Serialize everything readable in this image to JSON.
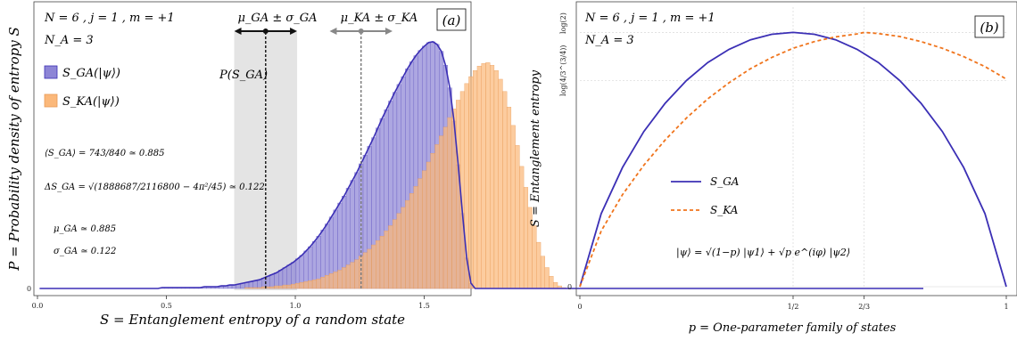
{
  "chart_data": [
    {
      "type": "histogram",
      "panel_label": "(a)",
      "header": {
        "line1": "N = 6 , j = 1 , m = +1",
        "line2": "N_A = 3"
      },
      "xlabel": "S = Entanglement entropy of a random state",
      "ylabel": "P = Probability density of entropy S",
      "xlim": [
        0.0,
        1.64
      ],
      "x_ticks": [
        "0.0",
        "0.5",
        "1.0",
        "1.5"
      ],
      "y_ticks": [
        "0"
      ],
      "legend": [
        "S_GA(|ψ⟩)",
        "S_KA(|ψ⟩)"
      ],
      "colors": {
        "GA": "#8d85d6",
        "GA_line": "#3b2fb5",
        "KA": "#fbb87a"
      },
      "curve_label": "P(S_GA)",
      "annotations": {
        "mean_GA_eq": "⟨S_GA⟩ = 743/840 ≃ 0.885",
        "delta_GA_eq": "ΔS_GA = √(1888687/2116800 − 4π²/45) ≃ 0.122",
        "mu_GA": "μ_GA ≃ 0.885",
        "sigma_GA": "σ_GA ≃ 0.122",
        "mu_sigma_GA": "μ_GA ± σ_GA",
        "mu_sigma_KA": "μ_KA ± σ_KA"
      },
      "stats": {
        "mu_GA": 0.885,
        "sigma_GA": 0.122,
        "mu_KA": 1.255,
        "sigma_KA": 0.122
      },
      "series": [
        {
          "name": "S_GA(|ψ⟩)",
          "bin_width": 0.0164,
          "x_start": 0.0,
          "values": [
            0,
            0,
            0,
            0,
            0,
            0,
            0,
            0,
            0,
            0,
            0,
            0,
            0,
            0,
            0,
            0,
            0,
            0,
            0,
            0,
            0,
            0,
            0,
            0,
            0,
            0,
            0,
            0,
            0,
            0.01,
            0.01,
            0.01,
            0.01,
            0.01,
            0.01,
            0.01,
            0.01,
            0.01,
            0.01,
            0.02,
            0.02,
            0.02,
            0.02,
            0.03,
            0.03,
            0.04,
            0.04,
            0.05,
            0.06,
            0.07,
            0.08,
            0.09,
            0.1,
            0.12,
            0.14,
            0.16,
            0.18,
            0.21,
            0.24,
            0.27,
            0.3,
            0.34,
            0.38,
            0.43,
            0.48,
            0.54,
            0.6,
            0.67,
            0.74,
            0.82,
            0.9,
            0.98,
            1.06,
            1.15,
            1.24,
            1.33,
            1.43,
            1.53,
            1.63,
            1.73,
            1.84,
            1.95,
            2.05,
            2.15,
            2.25,
            2.34,
            2.43,
            2.52,
            2.6,
            2.67,
            2.73,
            2.78,
            2.82,
            2.83,
            2.8,
            2.72,
            2.56,
            2.3,
            1.92,
            1.42,
            0.86,
            0.35,
            0.06,
            0,
            0,
            0,
            0,
            0,
            0,
            0,
            0,
            0,
            0,
            0,
            0,
            0,
            0,
            0,
            0,
            0,
            0,
            0,
            0,
            0,
            0,
            0,
            0,
            0,
            0,
            0,
            0,
            0,
            0,
            0,
            0,
            0,
            0,
            0,
            0,
            0,
            0,
            0,
            0,
            0,
            0,
            0,
            0,
            0,
            0,
            0,
            0,
            0,
            0,
            0,
            0,
            0,
            0,
            0,
            0,
            0,
            0,
            0,
            0,
            0,
            0,
            0,
            0,
            0,
            0,
            0,
            0,
            0,
            0,
            0,
            0,
            0,
            0,
            0,
            0,
            0,
            0,
            0,
            0,
            0,
            0,
            0,
            0,
            0,
            0,
            0,
            0,
            0,
            0,
            0,
            0,
            0,
            0,
            0,
            0,
            0,
            0,
            0,
            0,
            0,
            0,
            0,
            0,
            0,
            0,
            0
          ]
        },
        {
          "name": "S_KA(|ψ⟩)",
          "bin_width": 0.0164,
          "x_start": 0.0,
          "values": [
            0,
            0,
            0,
            0,
            0,
            0,
            0,
            0,
            0,
            0,
            0,
            0,
            0,
            0,
            0,
            0,
            0,
            0,
            0,
            0,
            0,
            0,
            0,
            0,
            0,
            0,
            0,
            0,
            0,
            0,
            0,
            0,
            0,
            0,
            0,
            0,
            0,
            0,
            0,
            0,
            0,
            0,
            0,
            0,
            0,
            0,
            0,
            0,
            0,
            0.01,
            0.01,
            0.01,
            0.01,
            0.02,
            0.02,
            0.02,
            0.03,
            0.03,
            0.04,
            0.04,
            0.05,
            0.06,
            0.07,
            0.08,
            0.09,
            0.1,
            0.11,
            0.13,
            0.15,
            0.17,
            0.19,
            0.21,
            0.24,
            0.27,
            0.3,
            0.33,
            0.37,
            0.41,
            0.45,
            0.5,
            0.55,
            0.6,
            0.66,
            0.72,
            0.79,
            0.86,
            0.93,
            1.01,
            1.09,
            1.17,
            1.26,
            1.35,
            1.45,
            1.55,
            1.65,
            1.75,
            1.85,
            1.96,
            2.06,
            2.16,
            2.26,
            2.35,
            2.43,
            2.5,
            2.55,
            2.58,
            2.59,
            2.56,
            2.5,
            2.4,
            2.26,
            2.08,
            1.87,
            1.64,
            1.4,
            1.16,
            0.93,
            0.72,
            0.53,
            0.37,
            0.24,
            0.14,
            0.07,
            0.03,
            0.01,
            0,
            0,
            0,
            0,
            0,
            0,
            0,
            0,
            0,
            0,
            0,
            0,
            0,
            0,
            0,
            0,
            0,
            0,
            0,
            0,
            0,
            0,
            0,
            0,
            0,
            0,
            0,
            0,
            0,
            0,
            0,
            0,
            0,
            0,
            0,
            0,
            0,
            0,
            0,
            0,
            0,
            0,
            0,
            0,
            0,
            0,
            0,
            0,
            0,
            0,
            0,
            0,
            0,
            0,
            0,
            0,
            0,
            0,
            0,
            0,
            0,
            0,
            0,
            0,
            0,
            0,
            0,
            0,
            0,
            0,
            0,
            0,
            0,
            0,
            0,
            0,
            0,
            0,
            0,
            0,
            0,
            0,
            0,
            0,
            0,
            0
          ]
        }
      ]
    },
    {
      "type": "line",
      "panel_label": "(b)",
      "header": {
        "line1": "N = 6 , j = 1 , m = +1",
        "line2": "N_A = 3"
      },
      "xlabel": "p = One-parameter family of states",
      "ylabel": "S = Entanglement entropy",
      "x_ticks": [
        "0",
        "1/2",
        "2/3",
        "1"
      ],
      "y_ticks": [
        "0",
        "log(4/3^(3/4))",
        "log(2)"
      ],
      "xlim": [
        0,
        1
      ],
      "ylim": [
        0,
        0.7135
      ],
      "state_eq": "|ψ⟩ = √(1−p) |ψ1⟩ + √p e^(iφ) |ψ2⟩",
      "series": [
        {
          "name": "S_GA",
          "style": "solid",
          "color": "#3b2fb5",
          "x": [
            0,
            0.05,
            0.1,
            0.15,
            0.2,
            0.25,
            0.3,
            0.35,
            0.4,
            0.45,
            0.5,
            0.55,
            0.6,
            0.65,
            0.7,
            0.75,
            0.8,
            0.85,
            0.9,
            0.95,
            1
          ],
          "y": [
            0,
            0.199,
            0.325,
            0.423,
            0.5,
            0.562,
            0.611,
            0.647,
            0.673,
            0.688,
            0.693,
            0.688,
            0.673,
            0.647,
            0.611,
            0.562,
            0.5,
            0.423,
            0.325,
            0.199,
            0
          ]
        },
        {
          "name": "S_KA",
          "style": "dashed",
          "color": "#f0741c",
          "x": [
            0,
            0.05,
            0.1,
            0.15,
            0.2,
            0.25,
            0.3,
            0.35,
            0.4,
            0.45,
            0.5,
            0.55,
            0.6,
            0.65,
            0.6667,
            0.7,
            0.75,
            0.8,
            0.85,
            0.9,
            0.95,
            1
          ],
          "y": [
            0,
            0.152,
            0.251,
            0.331,
            0.4,
            0.46,
            0.512,
            0.556,
            0.594,
            0.625,
            0.65,
            0.668,
            0.681,
            0.689,
            0.6931,
            0.69,
            0.682,
            0.668,
            0.65,
            0.627,
            0.6,
            0.566
          ]
        }
      ]
    }
  ]
}
